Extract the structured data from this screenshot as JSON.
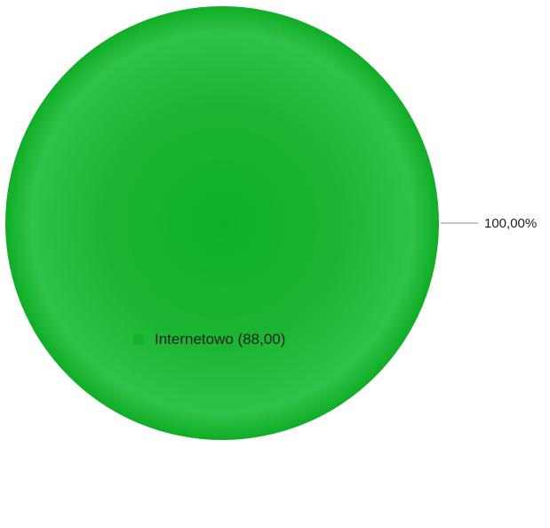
{
  "chart_data": {
    "type": "pie",
    "title": "",
    "slices": [
      {
        "label": "Internetowo",
        "value": 88.0,
        "value_text": "88,00",
        "percent": 100.0,
        "percent_text": "100,00%",
        "color": "#15b32a"
      }
    ],
    "legend_position": "bottom"
  },
  "legend": {
    "items": [
      {
        "text": "Internetowo (88,00)"
      }
    ]
  }
}
